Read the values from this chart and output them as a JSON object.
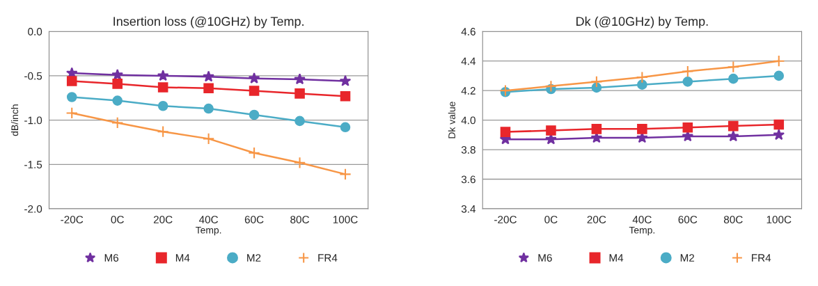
{
  "chart_data": [
    {
      "type": "line",
      "title": "Insertion loss (@10GHz) by Temp.",
      "xlabel": "Temp.",
      "ylabel": "dB/inch",
      "categories": [
        "-20C",
        "0C",
        "20C",
        "40C",
        "60C",
        "80C",
        "100C"
      ],
      "series": [
        {
          "name": "M6",
          "color": "#7030a0",
          "marker": "star",
          "values": [
            -0.47,
            -0.49,
            -0.5,
            -0.51,
            -0.53,
            -0.54,
            -0.56
          ]
        },
        {
          "name": "M4",
          "color": "#e8262b",
          "marker": "square",
          "values": [
            -0.56,
            -0.59,
            -0.63,
            -0.64,
            -0.67,
            -0.7,
            -0.73
          ]
        },
        {
          "name": "M2",
          "color": "#4bacc6",
          "marker": "circle",
          "values": [
            -0.74,
            -0.78,
            -0.84,
            -0.87,
            -0.94,
            -1.01,
            -1.08
          ]
        },
        {
          "name": "FR4",
          "color": "#f79646",
          "marker": "cross",
          "values": [
            -0.92,
            -1.03,
            -1.13,
            -1.21,
            -1.37,
            -1.48,
            -1.61
          ]
        }
      ],
      "ylim": [
        -2.0,
        0.0
      ],
      "yticks": [
        {
          "value": -2.0,
          "label": "-2.0"
        },
        {
          "value": -1.5,
          "label": "-1.5"
        },
        {
          "value": -1.0,
          "label": "-1.0"
        },
        {
          "value": -0.5,
          "label": "-0.5"
        },
        {
          "value": 0.0,
          "label": "0.0"
        }
      ],
      "grid": "y",
      "legend": "bottom"
    },
    {
      "type": "line",
      "title": "Dk (@10GHz) by Temp.",
      "xlabel": "Temp.",
      "ylabel": "Dk value",
      "categories": [
        "-20C",
        "0C",
        "20C",
        "40C",
        "60C",
        "80C",
        "100C"
      ],
      "series": [
        {
          "name": "M6",
          "color": "#7030a0",
          "marker": "star",
          "values": [
            3.87,
            3.87,
            3.88,
            3.88,
            3.89,
            3.89,
            3.9
          ]
        },
        {
          "name": "M4",
          "color": "#e8262b",
          "marker": "square",
          "values": [
            3.92,
            3.93,
            3.94,
            3.94,
            3.95,
            3.96,
            3.97
          ]
        },
        {
          "name": "M2",
          "color": "#4bacc6",
          "marker": "circle",
          "values": [
            4.19,
            4.21,
            4.22,
            4.24,
            4.26,
            4.28,
            4.3
          ]
        },
        {
          "name": "FR4",
          "color": "#f79646",
          "marker": "cross",
          "values": [
            4.2,
            4.23,
            4.26,
            4.29,
            4.33,
            4.36,
            4.4
          ]
        }
      ],
      "ylim": [
        3.4,
        4.6
      ],
      "yticks": [
        {
          "value": 3.4,
          "label": "3.4"
        },
        {
          "value": 3.6,
          "label": "3.6"
        },
        {
          "value": 3.8,
          "label": "3.8"
        },
        {
          "value": 4.0,
          "label": "4.0"
        },
        {
          "value": 4.2,
          "label": "4.2"
        },
        {
          "value": 4.4,
          "label": "4.4"
        },
        {
          "value": 4.6,
          "label": "4.6"
        }
      ],
      "grid": "y",
      "legend": "bottom"
    }
  ]
}
